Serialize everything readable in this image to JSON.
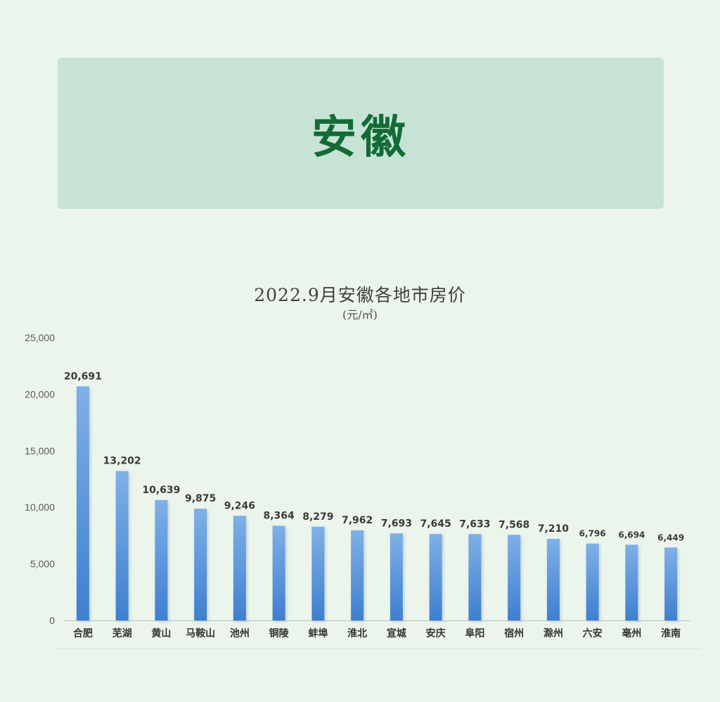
{
  "header": {
    "title": "安徽"
  },
  "chart_data": {
    "type": "bar",
    "title": "2022.9月安徽各地市房价",
    "subtitle": "(元/㎡)",
    "categories": [
      "合肥",
      "芜湖",
      "黄山",
      "马鞍山",
      "池州",
      "铜陵",
      "蚌埠",
      "淮北",
      "宣城",
      "安庆",
      "阜阳",
      "宿州",
      "滁州",
      "六安",
      "亳州",
      "淮南"
    ],
    "values": [
      20691,
      13202,
      10639,
      9875,
      9246,
      8364,
      8279,
      7962,
      7693,
      7645,
      7633,
      7568,
      7210,
      6796,
      6694,
      6449
    ],
    "value_labels": [
      "20,691",
      "13,202",
      "10,639",
      "9,875",
      "9,246",
      "8,364",
      "8,279",
      "7,962",
      "7,693",
      "7,645",
      "7,633",
      "7,568",
      "7,210",
      "6,796",
      "6,694",
      "6,449"
    ],
    "ylim": [
      0,
      25000
    ],
    "yticks": [
      0,
      5000,
      10000,
      15000,
      20000,
      25000
    ],
    "ytick_labels": [
      "0",
      "5,000",
      "10,000",
      "15,000",
      "20,000",
      "25,000"
    ],
    "grid": false,
    "legend": "none",
    "bar_color_top": "#7fb0e6",
    "bar_color_bottom": "#3f7fd0"
  }
}
